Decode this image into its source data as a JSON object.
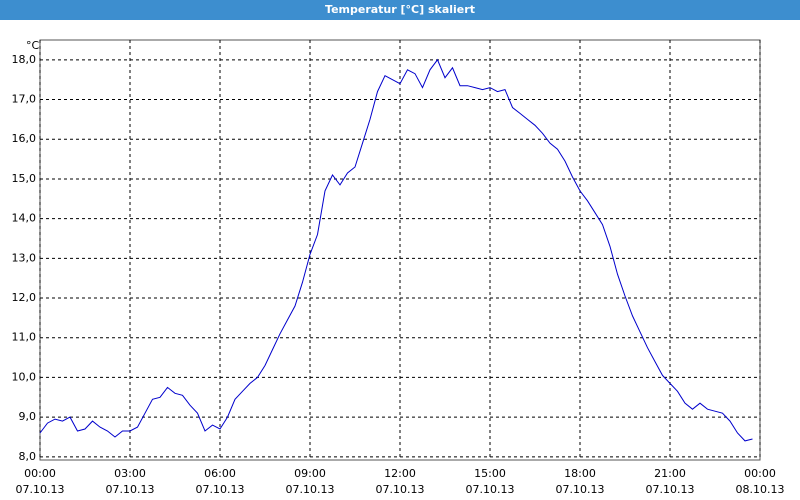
{
  "chart_data": {
    "type": "line",
    "title": "Temperatur [°C] skaliert",
    "y_unit": "°C",
    "x": [
      0,
      0.25,
      0.5,
      0.75,
      1,
      1.25,
      1.5,
      1.75,
      2,
      2.25,
      2.5,
      2.75,
      3,
      3.25,
      3.5,
      3.75,
      4,
      4.25,
      4.5,
      4.75,
      5,
      5.25,
      5.5,
      5.75,
      6,
      6.25,
      6.5,
      6.75,
      7,
      7.25,
      7.5,
      7.75,
      8,
      8.25,
      8.5,
      8.75,
      9,
      9.25,
      9.5,
      9.75,
      10,
      10.25,
      10.5,
      10.75,
      11,
      11.25,
      11.5,
      11.75,
      12,
      12.25,
      12.5,
      12.75,
      13,
      13.25,
      13.5,
      13.75,
      14,
      14.25,
      14.5,
      14.75,
      15,
      15.25,
      15.5,
      15.75,
      16,
      16.25,
      16.5,
      16.75,
      17,
      17.25,
      17.5,
      17.75,
      18,
      18.25,
      18.5,
      18.75,
      19,
      19.25,
      19.5,
      19.75,
      20,
      20.25,
      20.5,
      20.75,
      21,
      21.25,
      21.5,
      21.75,
      22,
      22.25,
      22.5,
      22.75,
      23,
      23.25,
      23.5,
      23.75
    ],
    "series": [
      {
        "color": "#0000cc",
        "values": [
          8.6,
          8.85,
          8.95,
          8.9,
          9.0,
          8.65,
          8.7,
          8.9,
          8.75,
          8.65,
          8.5,
          8.65,
          8.65,
          8.75,
          9.1,
          9.45,
          9.5,
          9.75,
          9.6,
          9.55,
          9.3,
          9.1,
          8.65,
          8.8,
          8.7,
          9.0,
          9.45,
          9.65,
          9.85,
          10.0,
          10.3,
          10.7,
          11.1,
          11.45,
          11.8,
          12.4,
          13.1,
          13.6,
          14.7,
          15.1,
          14.85,
          15.15,
          15.3,
          15.9,
          16.5,
          17.2,
          17.6,
          17.5,
          17.4,
          17.75,
          17.65,
          17.3,
          17.75,
          18.0,
          17.55,
          17.8,
          17.35,
          17.35,
          17.3,
          17.25,
          17.3,
          17.2,
          17.25,
          16.8,
          16.65,
          16.5,
          16.35,
          16.15,
          15.9,
          15.75,
          15.45,
          15.05,
          14.7,
          14.45,
          14.15,
          13.85,
          13.3,
          12.6,
          12.05,
          11.55,
          11.15,
          10.75,
          10.4,
          10.05,
          9.85,
          9.65,
          9.35,
          9.2,
          9.35,
          9.2,
          9.15,
          9.1,
          8.9,
          8.6,
          8.4,
          8.45
        ]
      }
    ],
    "xlim": [
      0,
      24
    ],
    "xticks": [
      {
        "value": 0,
        "label": [
          "00:00",
          "07.10.13"
        ]
      },
      {
        "value": 3,
        "label": [
          "03:00",
          "07.10.13"
        ]
      },
      {
        "value": 6,
        "label": [
          "06:00",
          "07.10.13"
        ]
      },
      {
        "value": 9,
        "label": [
          "09:00",
          "07.10.13"
        ]
      },
      {
        "value": 12,
        "label": [
          "12:00",
          "07.10.13"
        ]
      },
      {
        "value": 15,
        "label": [
          "15:00",
          "07.10.13"
        ]
      },
      {
        "value": 18,
        "label": [
          "18:00",
          "07.10.13"
        ]
      },
      {
        "value": 21,
        "label": [
          "21:00",
          "07.10.13"
        ]
      },
      {
        "value": 24,
        "label": [
          "00:00",
          "08.10.13"
        ]
      }
    ],
    "ylim": [
      7.92,
      18.5
    ],
    "yticks": [
      {
        "value": 8,
        "label": "8,0"
      },
      {
        "value": 9,
        "label": "9,0"
      },
      {
        "value": 10,
        "label": "10,0"
      },
      {
        "value": 11,
        "label": "11,0"
      },
      {
        "value": 12,
        "label": "12,0"
      },
      {
        "value": 13,
        "label": "13,0"
      },
      {
        "value": 14,
        "label": "14,0"
      },
      {
        "value": 15,
        "label": "15,0"
      },
      {
        "value": 16,
        "label": "16,0"
      },
      {
        "value": 17,
        "label": "17,0"
      },
      {
        "value": 18,
        "label": "18,0"
      }
    ],
    "grid": true
  }
}
